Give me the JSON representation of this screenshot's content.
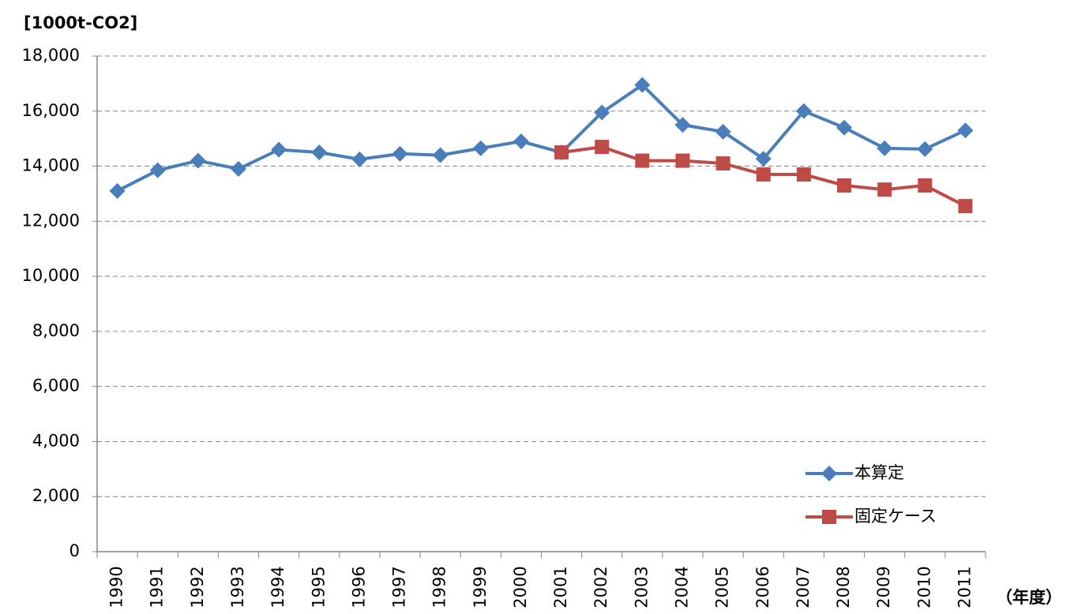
{
  "chart_data": {
    "type": "line",
    "y_label": "[1000t-CO2]",
    "x_label": "（年度）",
    "categories": [
      "1990",
      "1991",
      "1992",
      "1993",
      "1994",
      "1995",
      "1996",
      "1997",
      "1998",
      "1999",
      "2000",
      "2001",
      "2002",
      "2003",
      "2004",
      "2005",
      "2006",
      "2007",
      "2008",
      "2009",
      "2010",
      "2011"
    ],
    "series": [
      {
        "name": "本算定",
        "color": "#4a7ebb",
        "marker": "diamond",
        "values": [
          13100,
          13850,
          14200,
          13900,
          14600,
          14500,
          14250,
          14450,
          14400,
          14650,
          14900,
          14500,
          15950,
          16950,
          15500,
          15250,
          14270,
          16000,
          15400,
          14650,
          14620,
          15300
        ]
      },
      {
        "name": "固定ケース",
        "color": "#be4b48",
        "marker": "square",
        "values": [
          null,
          null,
          null,
          null,
          null,
          null,
          null,
          null,
          null,
          null,
          null,
          14500,
          14700,
          14200,
          14200,
          14100,
          13700,
          13700,
          13300,
          13150,
          13300,
          12550
        ]
      }
    ],
    "ylim": [
      0,
      18000
    ],
    "yticks": [
      0,
      {
        "value": 2000,
        "label": "2,000"
      },
      {
        "value": 4000,
        "label": "4,000"
      },
      {
        "value": 6000,
        "label": "6,000"
      },
      {
        "value": 8000,
        "label": "8,000"
      },
      {
        "value": 10000,
        "label": "10,000"
      },
      {
        "value": 12000,
        "label": "12,000"
      },
      {
        "value": 14000,
        "label": "14,000"
      },
      {
        "value": 16000,
        "label": "16,000"
      },
      {
        "value": 18000,
        "label": "18,000"
      }
    ],
    "grid": true,
    "legend": "lower right"
  }
}
